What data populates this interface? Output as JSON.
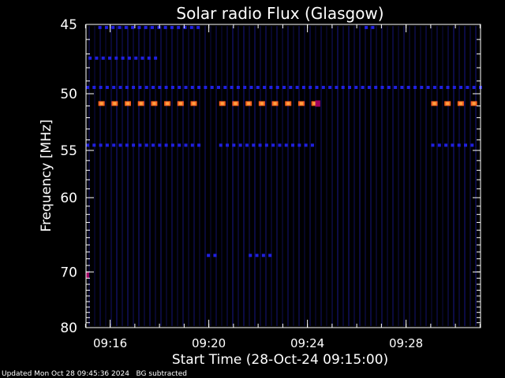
{
  "chart_data": {
    "type": "heatmap",
    "title": "Solar radio Flux (Glasgow)",
    "xlabel": "Start Time (28-Oct-24 09:15:00)",
    "ylabel": "Frequency [MHz]",
    "x_range_minutes": [
      0,
      16.0
    ],
    "x_ticks": [
      {
        "label": "09:16",
        "minutes": 0.98
      },
      {
        "label": "09:20",
        "minutes": 4.98
      },
      {
        "label": "09:24",
        "minutes": 8.98
      },
      {
        "label": "09:28",
        "minutes": 12.98
      }
    ],
    "y_range_mhz": [
      45,
      80
    ],
    "y_ticks": [
      {
        "label": "45",
        "mhz": 45
      },
      {
        "label": "50",
        "mhz": 50
      },
      {
        "label": "55",
        "mhz": 55
      },
      {
        "label": "60",
        "mhz": 60
      },
      {
        "label": "70",
        "mhz": 70
      },
      {
        "label": "80",
        "mhz": 80
      }
    ],
    "y_scale": "reciprocal",
    "colors": {
      "background": "#000000",
      "low": "#101060",
      "mid": "#2020e0",
      "high": "#ff6020",
      "peak": "#ffa040"
    },
    "bands": [
      {
        "mhz": 49.5,
        "intensity": "mid",
        "segments": [
          [
            0,
            16.0
          ]
        ]
      },
      {
        "mhz": 50.8,
        "intensity": "high",
        "segments": [
          [
            0.5,
            4.5
          ],
          [
            5.4,
            9.3
          ],
          [
            14.0,
            15.8
          ]
        ]
      },
      {
        "mhz": 50.8,
        "intensity": "peak_point",
        "segments": [
          [
            9.3,
            9.5
          ]
        ]
      },
      {
        "mhz": 54.5,
        "intensity": "mid",
        "segments": [
          [
            0,
            4.6
          ],
          [
            5.4,
            9.3
          ],
          [
            14.0,
            15.8
          ]
        ]
      },
      {
        "mhz": 47.3,
        "intensity": "mid",
        "segments": [
          [
            0.1,
            2.9
          ]
        ]
      },
      {
        "mhz": 45.2,
        "intensity": "mid",
        "segments": [
          [
            0.5,
            4.5
          ],
          [
            11.3,
            11.8
          ]
        ]
      },
      {
        "mhz": 67.5,
        "intensity": "mid",
        "segments": [
          [
            4.9,
            5.3
          ],
          [
            6.6,
            7.5
          ]
        ]
      },
      {
        "mhz": 70.5,
        "intensity": "peak_point",
        "segments": [
          [
            0.0,
            0.1
          ]
        ]
      }
    ]
  },
  "footer": {
    "updated": "Updated Mon Oct 28 09:45:36 2024",
    "note": "BG subtracted"
  }
}
